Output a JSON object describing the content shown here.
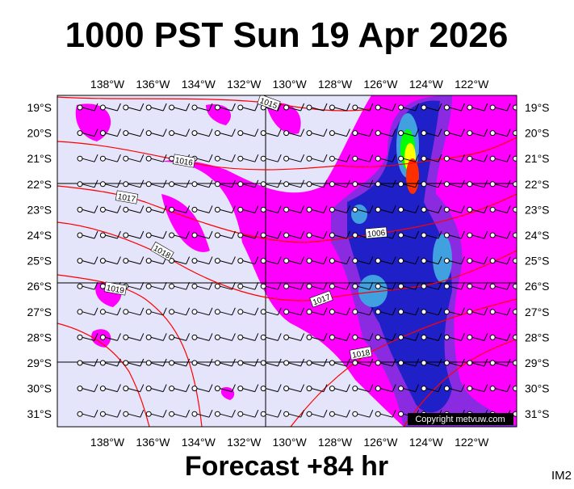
{
  "title": "1000 PST Sun 19 Apr 2026",
  "footer": "Forecast +84 hr",
  "corner": "IM2",
  "copyright": "Copyright metvuw.com",
  "lon_labels": [
    "138°W",
    "136°W",
    "134°W",
    "132°W",
    "130°W",
    "128°W",
    "126°W",
    "124°W",
    "122°W"
  ],
  "lat_labels": [
    "19°S",
    "20°S",
    "21°S",
    "22°S",
    "23°S",
    "24°S",
    "25°S",
    "26°S",
    "27°S",
    "28°S",
    "29°S",
    "30°S",
    "31°S"
  ],
  "isobar_labels": [
    "1015",
    "1016",
    "1017",
    "1018",
    "1019",
    "1006",
    "1017",
    "1018"
  ]
}
